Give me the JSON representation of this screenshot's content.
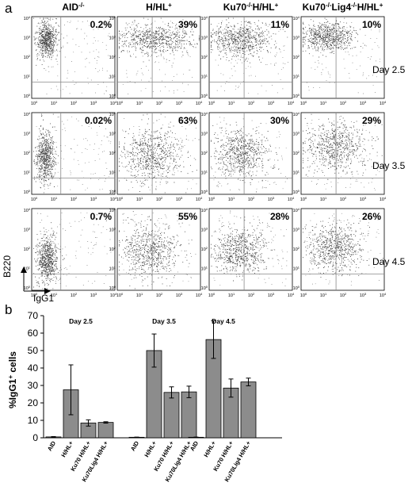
{
  "panel_a": {
    "letter": "a",
    "genotype_titles": [
      {
        "main": "AID",
        "sup": "-/-",
        "rest": ""
      },
      {
        "main": "H/HL",
        "sup": "+",
        "rest": ""
      },
      {
        "main": "Ku70",
        "sup": "-/-",
        "rest": "H/HL",
        "sup2": "+"
      },
      {
        "main": "Ku70",
        "sup": "-/-",
        "rest": "Lig4",
        "sup2": "-/-",
        "rest2": "H/HL",
        "sup3": "+"
      }
    ],
    "day_labels": [
      "Day 2.5",
      "Day 3.5",
      "Day 4.5"
    ],
    "percentages": [
      [
        "0.2%",
        "39%",
        "11%",
        "10%"
      ],
      [
        "0.02%",
        "63%",
        "30%",
        "29%"
      ],
      [
        "0.7%",
        "55%",
        "28%",
        "26%"
      ]
    ],
    "y_axis_label": "B220",
    "x_axis_label": "IgG1",
    "tick_labels": [
      "10",
      "10",
      "10",
      "10",
      "10"
    ],
    "tick_exponents": [
      "0",
      "1",
      "2",
      "3",
      "4"
    ]
  },
  "chart_data": {
    "type": "bar",
    "panel_letter": "b",
    "ylabel": "%IgG1+ cells",
    "ylabel_main": "%IgG1",
    "ylabel_sup": "+",
    "ylabel_rest": " cells",
    "ylim": [
      0,
      70
    ],
    "yticks": [
      "0",
      "10",
      "20",
      "30",
      "40",
      "50",
      "60",
      "70"
    ],
    "groups": [
      {
        "name": "Day 2.5",
        "categories": [
          "AID",
          "H/HL+",
          "Ku70 H/HL+",
          "Ku70Lig4 H/HL+"
        ],
        "values": [
          0.5,
          27.5,
          8.5,
          8.8
        ],
        "errors": [
          0.2,
          14.3,
          1.8,
          0.4
        ]
      },
      {
        "name": "Day 3.5",
        "categories": [
          "AID",
          "H/HL+",
          "Ku70 H/HL+",
          "Ku70Lig4 H/HL+"
        ],
        "values": [
          0.3,
          50,
          26,
          26.3
        ],
        "errors": [
          0.1,
          9.5,
          3.2,
          3.3
        ]
      },
      {
        "name": "Day 4.5",
        "categories": [
          "AID",
          "H/HL+",
          "Ku70 H/HL+",
          "Ku70Lig4 H/HL+"
        ],
        "values": [
          0.3,
          56.3,
          28.5,
          32
        ],
        "errors": [
          0.1,
          10.8,
          5.2,
          2.2
        ]
      }
    ],
    "bar_color": "#8c8c8c",
    "grid": false
  }
}
